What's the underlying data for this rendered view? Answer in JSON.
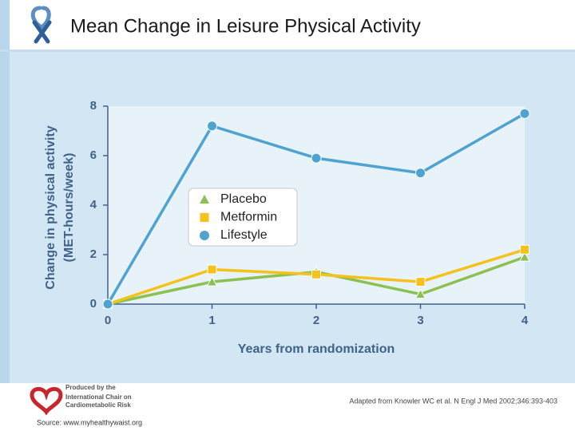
{
  "chart_data": {
    "type": "line",
    "title": "Mean Change in Leisure Physical Activity",
    "ylabel": [
      "Change in physical activity",
      "(MET-hours/week)"
    ],
    "xlabel": "Years from randomization",
    "x": [
      0,
      1,
      2,
      3,
      4
    ],
    "xlim": [
      0,
      4
    ],
    "xticks": [
      0,
      1,
      2,
      3,
      4
    ],
    "ylim": [
      0,
      8
    ],
    "yticks": [
      0,
      2,
      4,
      6,
      8
    ],
    "legend": "upper left",
    "series": [
      {
        "name": "Placebo",
        "color": "#8cc152",
        "marker": "triangle",
        "values": [
          0,
          0.9,
          1.3,
          0.4,
          1.9
        ]
      },
      {
        "name": "Metformin",
        "color": "#f5c21b",
        "marker": "square",
        "values": [
          0,
          1.4,
          1.2,
          0.9,
          2.2
        ]
      },
      {
        "name": "Lifestyle",
        "color": "#4fa3d1",
        "marker": "circle",
        "values": [
          0,
          7.2,
          5.9,
          5.3,
          7.7
        ]
      }
    ]
  },
  "footer": {
    "citation": "Adapted from Knowler WC et al. N Engl J Med 2002;346:393-403",
    "source": "Source: www.myhealthywaist.org",
    "logo": [
      "Produced by the",
      "International Chair on",
      "Cardiometabolic Risk"
    ]
  }
}
